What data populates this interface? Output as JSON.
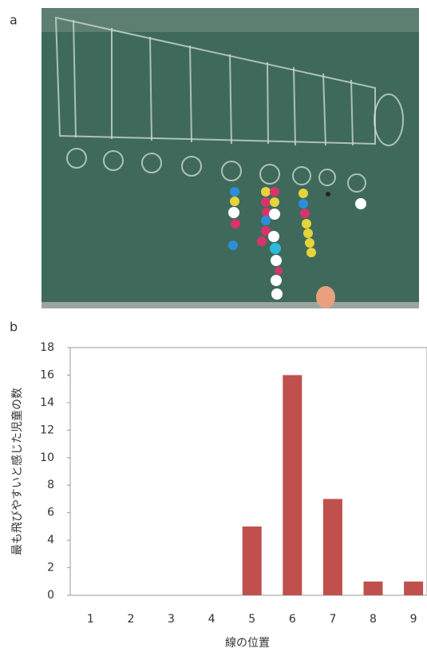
{
  "panel_labels": [
    "a",
    "b"
  ],
  "chart_data": {
    "type": "bar",
    "x_label": "線の位置",
    "y_label": "最も飛びやすいと感じた児童の数",
    "categories": [
      "1",
      "2",
      "3",
      "4",
      "5",
      "6",
      "7",
      "8",
      "9"
    ],
    "values": [
      0,
      0,
      0,
      0,
      5,
      16,
      7,
      1,
      1
    ],
    "color": "#c0504d",
    "ylim": [
      0,
      18
    ],
    "yticks": [
      0,
      2,
      4,
      6,
      8,
      10,
      12,
      14,
      16,
      18
    ],
    "grid": false
  }
}
